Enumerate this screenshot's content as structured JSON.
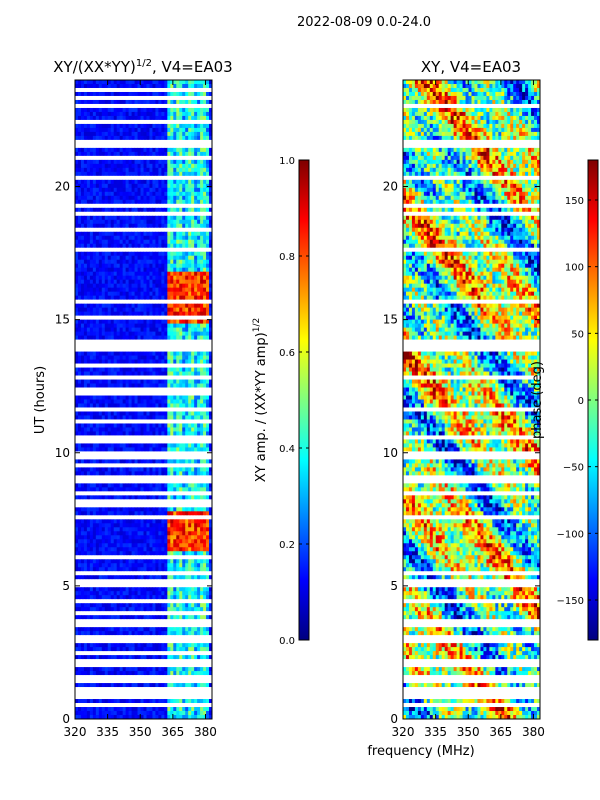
{
  "figure_title": "2022-08-09 0.0-24.0",
  "shared_xlabel": "frequency (MHz)",
  "chart_data": [
    {
      "type": "heatmap",
      "title": "XY/(XX*YY)",
      "title_exponent": "1/2",
      "title_suffix": ", V4=EA03",
      "xlabel": "",
      "ylabel": "UT (hours)",
      "xlim": [
        320,
        383
      ],
      "ylim": [
        0,
        24
      ],
      "xticks": [
        320,
        335,
        350,
        365,
        380
      ],
      "yticks": [
        0,
        5,
        10,
        15,
        20
      ],
      "colorbar": {
        "label": "XY amp. / (XX*YY amp)",
        "label_exponent": "1/2",
        "range": [
          0.0,
          1.0
        ],
        "ticks": [
          "0.0",
          "0.2",
          "0.4",
          "0.6",
          "0.8",
          "1.0"
        ],
        "colormap": "jet"
      },
      "blank_time_rows_hours": [
        0.5,
        0.9,
        1.1,
        1.5,
        2.1,
        2.5,
        3.0,
        3.1,
        3.6,
        4.0,
        4.4,
        5.1,
        5.5,
        6.1,
        7.6,
        8.1,
        8.5,
        9.0,
        9.5,
        9.9,
        10.4,
        10.6,
        11.2,
        11.6,
        12.3,
        12.8,
        13.3,
        13.9,
        14.0,
        14.2,
        15.1,
        15.7,
        17.6,
        18.4,
        19.0,
        19.3,
        20.3,
        21.1,
        21.6,
        22.4,
        23.0,
        23.3,
        23.6
      ],
      "high_amplitude_band_MHz": [
        362,
        381
      ],
      "high_amplitude_times_hours": [
        [
          6.3,
          7.8
        ],
        [
          14.8,
          16.8
        ]
      ]
    },
    {
      "type": "heatmap",
      "title": "XY, V4=EA03",
      "xlabel": "",
      "ylabel": "",
      "xlim": [
        320,
        383
      ],
      "ylim": [
        0,
        24
      ],
      "xticks": [
        320,
        335,
        350,
        365,
        380
      ],
      "yticks": [
        0,
        5,
        10,
        15,
        20
      ],
      "colorbar": {
        "label": "phase (deg)",
        "range": [
          -180,
          180
        ],
        "ticks": [
          "−150",
          "−100",
          "−50",
          "0",
          "50",
          "100",
          "150"
        ],
        "tick_values": [
          -150,
          -100,
          -50,
          0,
          50,
          100,
          150
        ],
        "colormap": "jet"
      },
      "blank_time_rows_hours": [
        0.5,
        0.9,
        1.1,
        1.5,
        2.1,
        3.0,
        3.1,
        3.6,
        4.4,
        5.1,
        5.5,
        7.6,
        8.5,
        9.0,
        9.9,
        10.6,
        11.6,
        12.8,
        13.9,
        14.0,
        14.2,
        15.7,
        17.6,
        19.0,
        19.3,
        20.3,
        21.6,
        23.0
      ]
    }
  ]
}
